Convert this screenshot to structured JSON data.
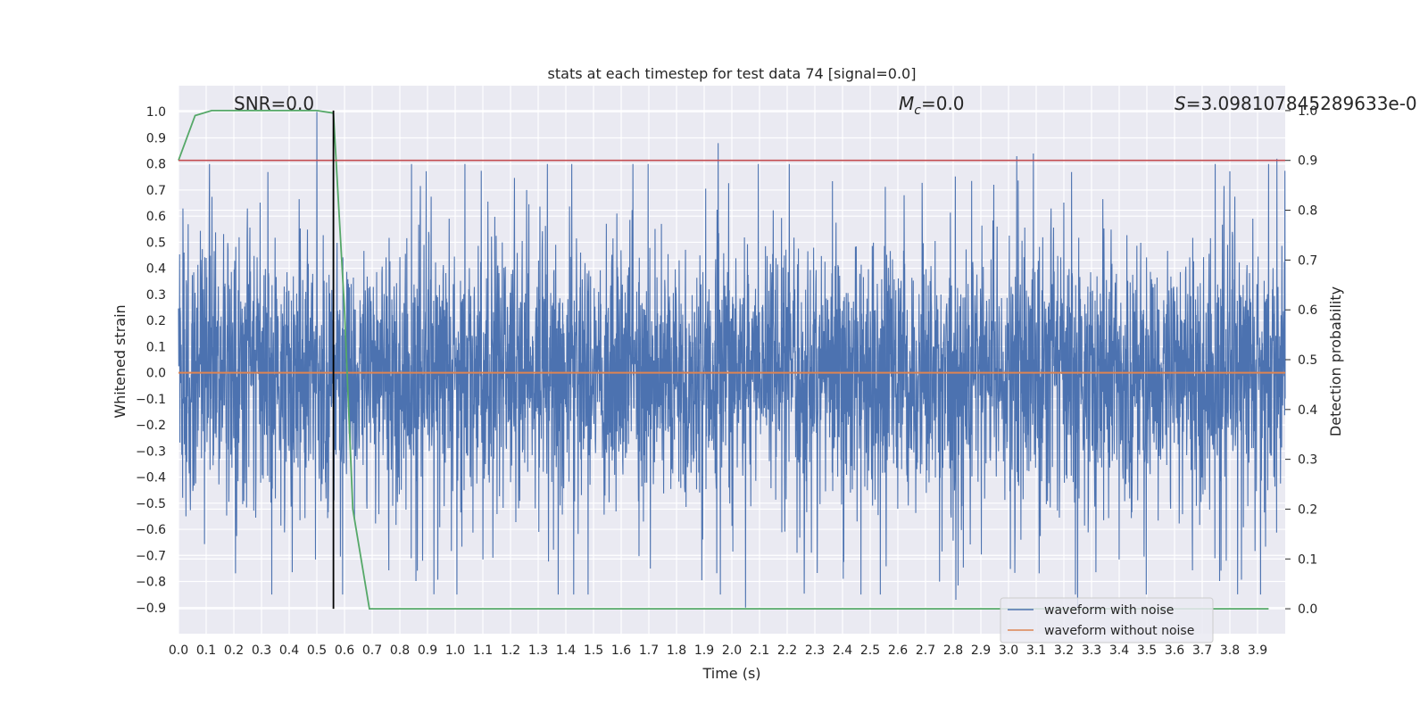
{
  "chart_data": {
    "type": "line",
    "title": "stats at each timestep for test data 74 [signal=0.0]",
    "xlabel": "Time (s)",
    "ylabel_left": "Whitened strain",
    "ylabel_right": "Detection probability",
    "xlim": [
      0.0,
      4.0
    ],
    "ylim_left": [
      -1.0,
      1.1
    ],
    "ylim_right": [
      -0.05,
      1.05
    ],
    "x_ticks": [
      "0.0",
      "0.1",
      "0.2",
      "0.3",
      "0.4",
      "0.5",
      "0.6",
      "0.7",
      "0.8",
      "0.9",
      "1.0",
      "1.1",
      "1.2",
      "1.3",
      "1.4",
      "1.5",
      "1.6",
      "1.7",
      "1.8",
      "1.9",
      "2.0",
      "2.1",
      "2.2",
      "2.3",
      "2.4",
      "2.5",
      "2.6",
      "2.7",
      "2.8",
      "2.9",
      "3.0",
      "3.1",
      "3.2",
      "3.3",
      "3.4",
      "3.5",
      "3.6",
      "3.7",
      "3.8",
      "3.9"
    ],
    "y_left_ticks": [
      "1.0",
      "0.9",
      "0.8",
      "0.7",
      "0.6",
      "0.5",
      "0.4",
      "0.3",
      "0.2",
      "0.1",
      "0.0",
      "−0.1",
      "−0.2",
      "−0.3",
      "−0.4",
      "−0.5",
      "−0.6",
      "−0.7",
      "−0.8",
      "−0.9"
    ],
    "y_right_ticks": [
      "1.0",
      "0.9",
      "0.8",
      "0.7",
      "0.6",
      "0.5",
      "0.4",
      "0.3",
      "0.2",
      "0.1",
      "0.0"
    ],
    "grid": true,
    "annotations": {
      "snr": "SNR=0.0",
      "mc_symbol": "M",
      "mc_sub": "c",
      "mc_value": "=0.0",
      "s_symbol": "S",
      "s_value": "=3.098107845289633e-0"
    },
    "legend": {
      "placement": "lower-right",
      "entries": [
        "waveform with noise",
        "waveform without noise"
      ]
    },
    "series": [
      {
        "name": "waveform with noise",
        "axis": "left",
        "color": "#4c72b0",
        "noise_std": 0.28,
        "samples": 4000,
        "x_range": [
          0.0,
          4.0
        ],
        "peaks": [
          [
            0.5,
            1.0
          ],
          [
            0.56,
            1.0
          ],
          [
            1.95,
            0.88
          ],
          [
            2.05,
            -0.9
          ],
          [
            2.81,
            -0.87
          ],
          [
            3.25,
            -0.9
          ],
          [
            3.09,
            0.84
          ],
          [
            3.03,
            0.83
          ],
          [
            3.97,
            0.82
          ]
        ]
      },
      {
        "name": "waveform without noise",
        "axis": "left",
        "color": "#dd8452",
        "x": [
          0.0,
          4.0
        ],
        "y": [
          0.0,
          0.0
        ]
      },
      {
        "axis": "right",
        "color": "#55a868",
        "x": [
          0.0,
          0.06,
          0.12,
          0.2,
          0.3,
          0.4,
          0.5,
          0.56,
          0.6,
          0.63,
          0.69,
          1.0,
          2.0,
          3.0,
          3.94
        ],
        "y": [
          0.9,
          0.99,
          1.0,
          1.0,
          1.0,
          1.0,
          1.0,
          0.995,
          0.6,
          0.2,
          0.0,
          0.0,
          0.0,
          0.0,
          0.0
        ]
      },
      {
        "axis": "right",
        "color": "#c44e52",
        "x": [
          0.0,
          4.0
        ],
        "y": [
          0.9,
          0.9
        ]
      }
    ],
    "vertical_line": {
      "x": 0.56,
      "color": "#000000",
      "y_range_right": [
        0.0,
        1.0
      ]
    }
  }
}
